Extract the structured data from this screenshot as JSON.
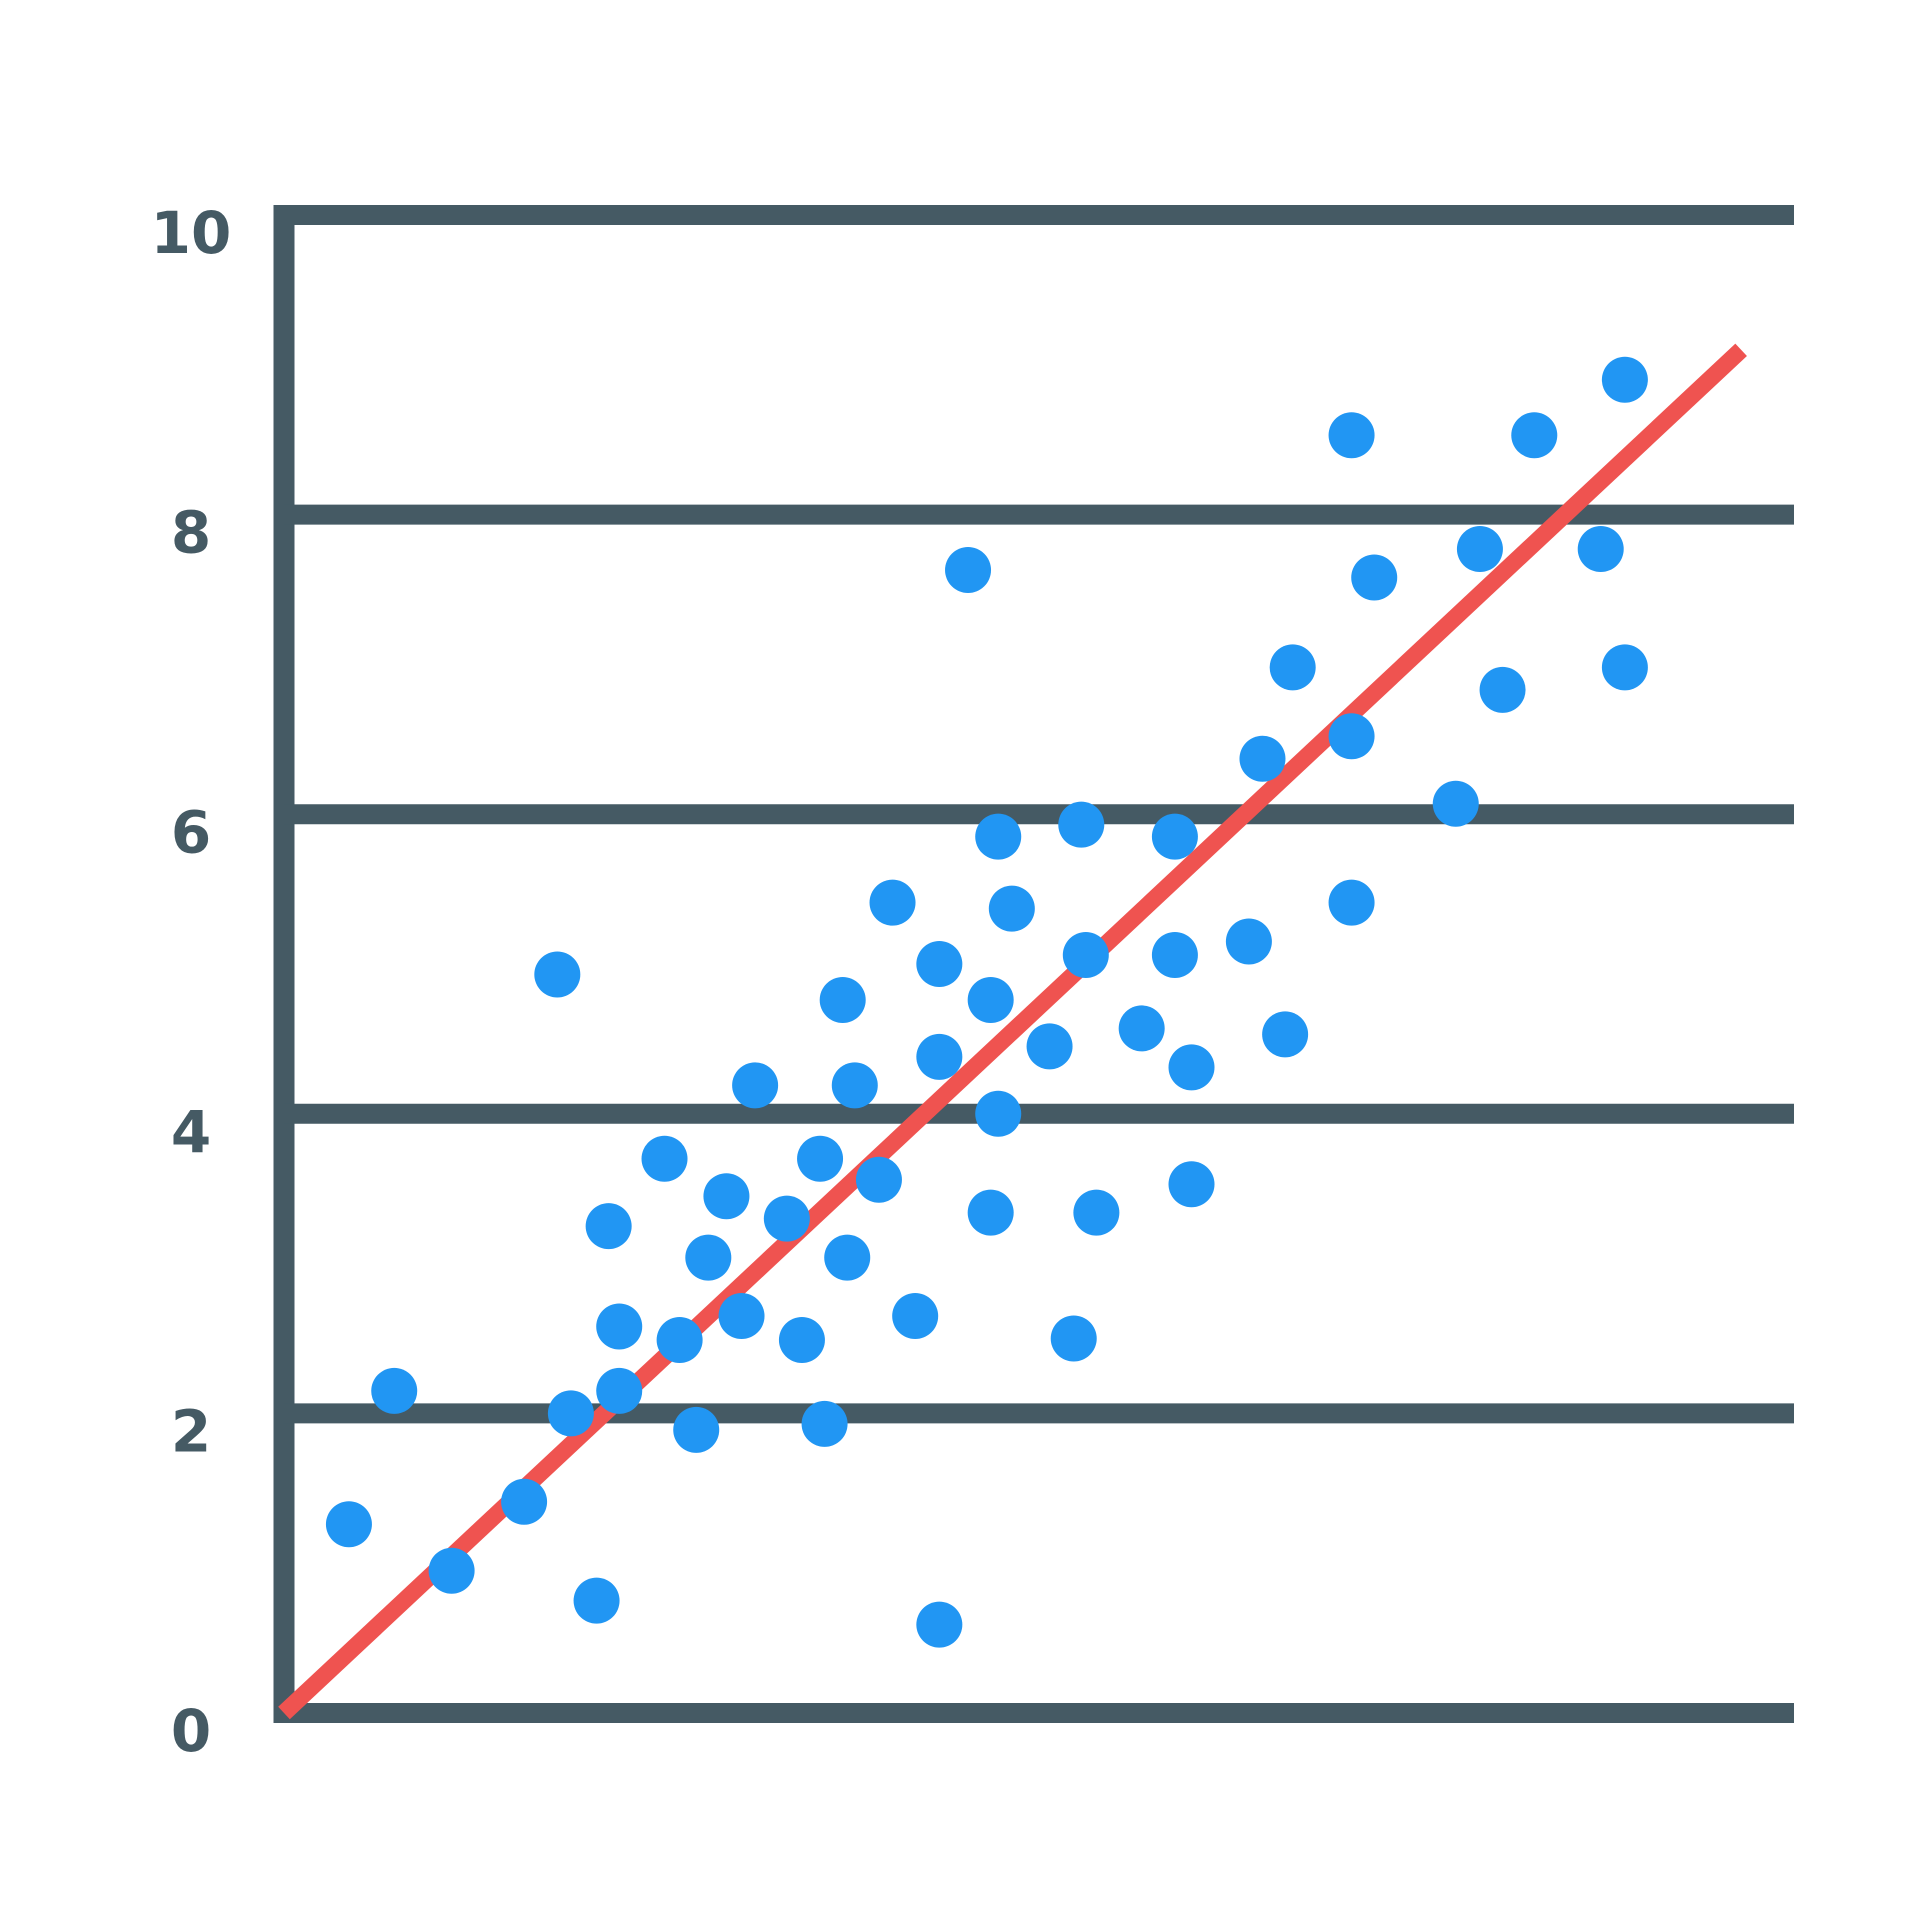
{
  "chart_data": {
    "type": "scatter",
    "xlim": [
      0,
      10
    ],
    "ylim": [
      0,
      10
    ],
    "yticks": [
      0,
      2,
      4,
      6,
      8,
      10
    ],
    "grid": true,
    "axis_color": "#455a64",
    "series": [
      {
        "color": "#2196f3",
        "x": [
          0.43,
          0.73,
          1.11,
          1.59,
          1.81,
          1.9,
          2.07,
          2.15,
          2.22,
          2.22,
          2.52,
          2.62,
          2.73,
          2.81,
          2.93,
          3.03,
          3.12,
          3.33,
          3.43,
          3.55,
          3.58,
          3.7,
          3.73,
          3.78,
          3.94,
          4.03,
          4.18,
          4.34,
          4.34,
          4.34,
          4.53,
          4.68,
          4.68,
          4.73,
          4.73,
          4.82,
          5.07,
          5.23,
          5.28,
          5.31,
          5.38,
          5.68,
          5.9,
          5.9,
          6.01,
          6.01,
          6.39,
          6.48,
          6.63,
          6.68,
          7.07,
          7.07,
          7.07,
          7.22,
          7.76,
          7.92,
          8.07,
          8.28,
          8.72,
          8.88,
          8.88
        ],
        "values": [
          1.26,
          2.15,
          0.95,
          1.41,
          4.93,
          2.0,
          0.75,
          3.25,
          2.58,
          2.15,
          3.7,
          2.49,
          1.89,
          3.04,
          3.45,
          2.65,
          4.19,
          3.3,
          2.49,
          3.7,
          1.93,
          4.76,
          3.04,
          4.19,
          3.56,
          5.41,
          2.65,
          5.0,
          4.38,
          0.59,
          7.63,
          4.76,
          3.34,
          5.85,
          4.0,
          5.37,
          4.45,
          2.5,
          5.93,
          5.06,
          3.34,
          4.57,
          5.85,
          5.06,
          4.31,
          3.53,
          5.15,
          6.37,
          4.53,
          6.98,
          8.53,
          6.52,
          5.41,
          7.58,
          6.07,
          7.77,
          6.83,
          8.53,
          7.77,
          8.9,
          6.98
        ]
      }
    ],
    "trend_line": {
      "color": "#ef5350",
      "x": [
        0,
        9.65
      ],
      "y": [
        0,
        9.1
      ]
    }
  }
}
